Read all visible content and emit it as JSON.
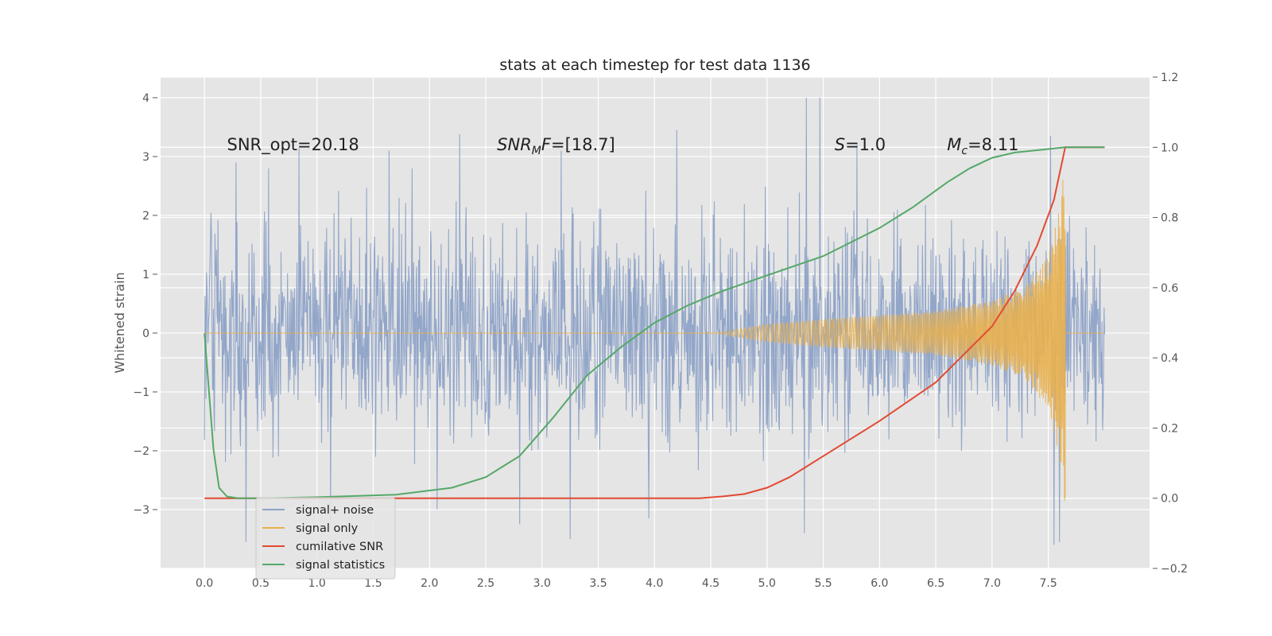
{
  "chart_data": {
    "type": "line",
    "title": "stats at each timestep for test data 1136",
    "xlabel": "",
    "ylabel": "Whitened strain",
    "xlim": [
      -0.39,
      8.4
    ],
    "ylim": [
      -4.0,
      4.35
    ],
    "y2lim": [
      -0.2,
      1.2
    ],
    "x_ticks": [
      "0.0",
      "0.5",
      "1.0",
      "1.5",
      "2.0",
      "2.5",
      "3.0",
      "3.5",
      "4.0",
      "4.5",
      "5.0",
      "5.5",
      "6.0",
      "6.5",
      "7.0",
      "7.5"
    ],
    "y_ticks": [
      "−3",
      "−2",
      "−1",
      "0",
      "1",
      "2",
      "3",
      "4"
    ],
    "y2_ticks": [
      "−0.2",
      "0.0",
      "0.2",
      "0.4",
      "0.6",
      "0.8",
      "1.0",
      "1.2"
    ],
    "grid": true,
    "legend_position": "lower-left",
    "annotations": [
      {
        "parts": [
          {
            "t": "SNR_opt=20.18"
          }
        ],
        "x": 0.2,
        "y": 3.2
      },
      {
        "parts": [
          {
            "t": "SNR",
            "i": true
          },
          {
            "t": "M",
            "i": true,
            "sub": true
          },
          {
            "t": "F",
            "i": true
          },
          {
            "t": "=[18.7]"
          }
        ],
        "x": 2.6,
        "y": 3.2
      },
      {
        "parts": [
          {
            "t": "S",
            "i": true
          },
          {
            "t": "=1.0"
          }
        ],
        "x": 5.6,
        "y": 3.2
      },
      {
        "parts": [
          {
            "t": "M",
            "i": true
          },
          {
            "t": "c",
            "i": true,
            "sub": true
          },
          {
            "t": "=8.11"
          }
        ],
        "x": 6.6,
        "y": 3.2
      }
    ],
    "series": [
      {
        "name": "signal+ noise",
        "axis": "left",
        "color": "#8da2c7",
        "kind": "noise",
        "x_range": [
          0.0,
          8.0
        ],
        "band": [
          -2.8,
          2.8
        ],
        "peaks_high": [
          [
            0.28,
            2.9
          ],
          [
            0.57,
            2.8
          ],
          [
            0.84,
            3.15
          ],
          [
            1.64,
            3.1
          ],
          [
            2.27,
            3.38
          ],
          [
            3.17,
            3.1
          ],
          [
            4.2,
            3.45
          ],
          [
            5.35,
            4.0
          ],
          [
            5.47,
            4.0
          ],
          [
            5.8,
            3.2
          ],
          [
            7.52,
            3.35
          ]
        ],
        "peaks_low": [
          [
            0.37,
            -3.55
          ],
          [
            1.12,
            -3.2
          ],
          [
            2.07,
            -3.0
          ],
          [
            2.8,
            -3.25
          ],
          [
            3.25,
            -3.5
          ],
          [
            3.95,
            -3.15
          ],
          [
            5.33,
            -3.4
          ],
          [
            7.55,
            -3.6
          ],
          [
            7.6,
            -3.55
          ]
        ]
      },
      {
        "name": "signal only",
        "axis": "left",
        "color": "#e8b04f",
        "kind": "chirp",
        "x_range": [
          0.0,
          7.65
        ],
        "amp_points": [
          [
            0.0,
            0.0
          ],
          [
            4.4,
            0.0
          ],
          [
            4.6,
            0.02
          ],
          [
            5.0,
            0.15
          ],
          [
            5.5,
            0.24
          ],
          [
            6.0,
            0.3
          ],
          [
            6.5,
            0.38
          ],
          [
            7.0,
            0.55
          ],
          [
            7.3,
            0.8
          ],
          [
            7.5,
            1.3
          ],
          [
            7.6,
            2.1
          ],
          [
            7.65,
            3.0
          ]
        ],
        "tail_x": [
          7.65,
          8.0
        ],
        "tail_y": 0.0
      },
      {
        "name": "cumilative SNR",
        "axis": "right",
        "color": "#e24a33",
        "x": [
          0.0,
          4.0,
          4.4,
          4.6,
          4.8,
          5.0,
          5.2,
          5.5,
          6.0,
          6.5,
          7.0,
          7.2,
          7.4,
          7.55,
          7.65,
          8.0
        ],
        "y": [
          0.0,
          0.0,
          0.0,
          0.005,
          0.012,
          0.03,
          0.06,
          0.12,
          0.22,
          0.33,
          0.49,
          0.59,
          0.72,
          0.85,
          1.0,
          1.0
        ]
      },
      {
        "name": "signal statistics",
        "axis": "right",
        "color": "#55a868",
        "x": [
          0.0,
          0.08,
          0.13,
          0.2,
          0.3,
          0.5,
          1.0,
          1.7,
          2.2,
          2.5,
          2.8,
          3.1,
          3.4,
          3.7,
          4.0,
          4.3,
          4.6,
          5.0,
          5.5,
          6.0,
          6.3,
          6.6,
          6.8,
          7.0,
          7.2,
          7.5,
          7.65,
          8.0
        ],
        "y": [
          0.47,
          0.14,
          0.03,
          0.005,
          0.0,
          0.0,
          0.003,
          0.01,
          0.03,
          0.06,
          0.12,
          0.23,
          0.35,
          0.43,
          0.5,
          0.55,
          0.59,
          0.635,
          0.69,
          0.77,
          0.83,
          0.9,
          0.94,
          0.97,
          0.985,
          0.995,
          1.0,
          1.0
        ]
      }
    ]
  }
}
